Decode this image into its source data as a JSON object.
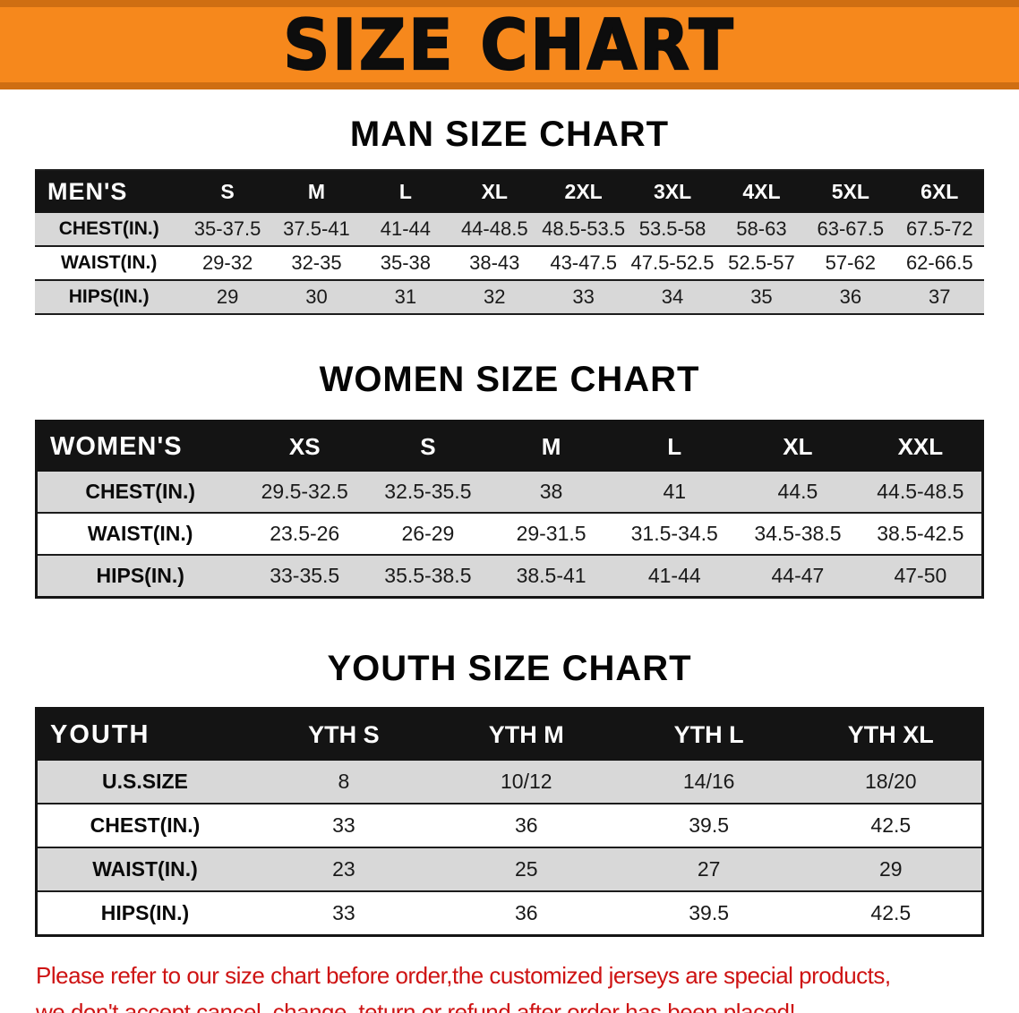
{
  "banner": {
    "title": "SIZE CHART"
  },
  "men": {
    "heading": "MAN SIZE CHART",
    "header_label": "MEN'S",
    "sizes": [
      "S",
      "M",
      "L",
      "XL",
      "2XL",
      "3XL",
      "4XL",
      "5XL",
      "6XL"
    ],
    "rows": [
      {
        "label": "CHEST(IN.)",
        "values": [
          "35-37.5",
          "37.5-41",
          "41-44",
          "44-48.5",
          "48.5-53.5",
          "53.5-58",
          "58-63",
          "63-67.5",
          "67.5-72"
        ]
      },
      {
        "label": "WAIST(IN.)",
        "values": [
          "29-32",
          "32-35",
          "35-38",
          "38-43",
          "43-47.5",
          "47.5-52.5",
          "52.5-57",
          "57-62",
          "62-66.5"
        ]
      },
      {
        "label": "HIPS(IN.)",
        "values": [
          "29",
          "30",
          "31",
          "32",
          "33",
          "34",
          "35",
          "36",
          "37"
        ]
      }
    ]
  },
  "women": {
    "heading": "WOMEN SIZE CHART",
    "header_label": "WOMEN'S",
    "sizes": [
      "XS",
      "S",
      "M",
      "L",
      "XL",
      "XXL"
    ],
    "rows": [
      {
        "label": "CHEST(IN.)",
        "values": [
          "29.5-32.5",
          "32.5-35.5",
          "38",
          "41",
          "44.5",
          "44.5-48.5"
        ]
      },
      {
        "label": "WAIST(IN.)",
        "values": [
          "23.5-26",
          "26-29",
          "29-31.5",
          "31.5-34.5",
          "34.5-38.5",
          "38.5-42.5"
        ]
      },
      {
        "label": "HIPS(IN.)",
        "values": [
          "33-35.5",
          "35.5-38.5",
          "38.5-41",
          "41-44",
          "44-47",
          "47-50"
        ]
      }
    ]
  },
  "youth": {
    "heading": "YOUTH SIZE CHART",
    "header_label": "YOUTH",
    "sizes": [
      "YTH S",
      "YTH M",
      "YTH L",
      "YTH XL"
    ],
    "rows": [
      {
        "label": "U.S.SIZE",
        "values": [
          "8",
          "10/12",
          "14/16",
          "18/20"
        ]
      },
      {
        "label": "CHEST(IN.)",
        "values": [
          "33",
          "36",
          "39.5",
          "42.5"
        ]
      },
      {
        "label": "WAIST(IN.)",
        "values": [
          "23",
          "25",
          "27",
          "29"
        ]
      },
      {
        "label": "HIPS(IN.)",
        "values": [
          "33",
          "36",
          "39.5",
          "42.5"
        ]
      }
    ]
  },
  "footer": {
    "line1": "Please refer to our size chart before order,the customized jerseys are special products,",
    "line2": "we don't accept cancel, change, teturn or refund after order has been placed!"
  },
  "colors": {
    "banner_orange": "#f6881c",
    "banner_border": "#cf6e12",
    "header_black": "#141414",
    "row_gray": "#d8d8d8",
    "disclaimer_red": "#ce1313"
  }
}
